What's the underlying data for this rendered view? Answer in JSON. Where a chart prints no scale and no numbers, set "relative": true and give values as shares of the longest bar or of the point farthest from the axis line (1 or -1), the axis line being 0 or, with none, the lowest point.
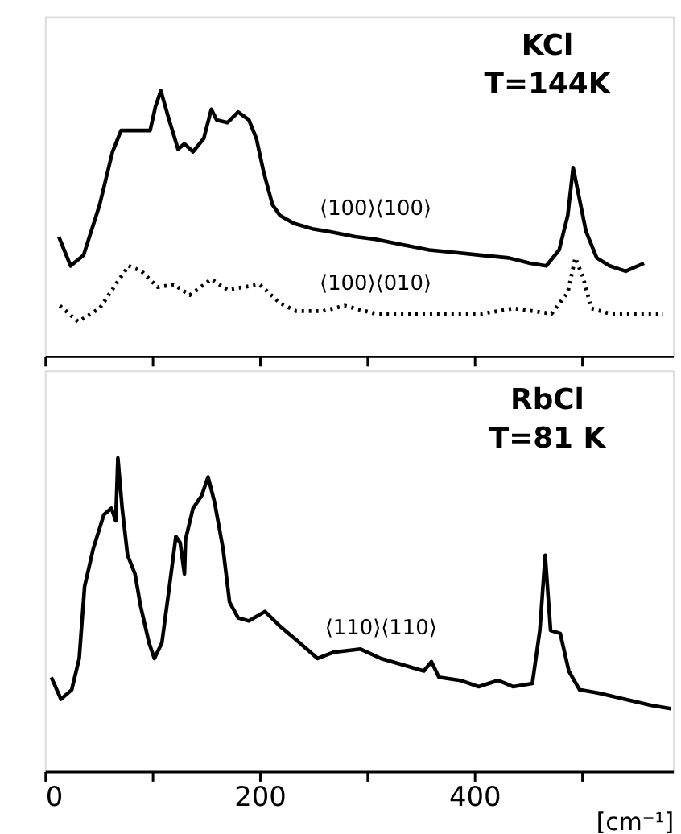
{
  "chart_data": [
    {
      "type": "line",
      "relative": true,
      "annotations": [
        "KCl",
        "T=144K"
      ],
      "xlim": [
        0,
        585
      ],
      "xticks": [
        0,
        100,
        200,
        300,
        400,
        500
      ],
      "tick_labels": false,
      "marker": "none",
      "series": [
        {
          "name": "⟨100⟩⟨100⟩",
          "color": "#000000",
          "line_style": "solid",
          "x": [
            13,
            24,
            36,
            51,
            63,
            71,
            86,
            98,
            103,
            108,
            115,
            124,
            130,
            138,
            148,
            155,
            160,
            170,
            180,
            190,
            197,
            204,
            212,
            219,
            232,
            249,
            264,
            289,
            308,
            333,
            358,
            383,
            407,
            432,
            452,
            467,
            479,
            487,
            492,
            497,
            504,
            514,
            526,
            541,
            558
          ],
          "values": [
            0.45,
            0.34,
            0.38,
            0.57,
            0.77,
            0.85,
            0.85,
            0.85,
            0.94,
            1.0,
            0.9,
            0.78,
            0.8,
            0.77,
            0.82,
            0.93,
            0.89,
            0.88,
            0.92,
            0.89,
            0.82,
            0.69,
            0.57,
            0.53,
            0.5,
            0.48,
            0.47,
            0.45,
            0.44,
            0.42,
            0.4,
            0.39,
            0.38,
            0.37,
            0.35,
            0.34,
            0.4,
            0.53,
            0.71,
            0.61,
            0.47,
            0.37,
            0.34,
            0.32,
            0.35
          ]
        },
        {
          "name": "⟨100⟩⟨010⟩",
          "color": "#000000",
          "line_style": "dotted",
          "x": [
            14,
            31,
            51,
            66,
            78,
            90,
            105,
            120,
            135,
            155,
            170,
            185,
            200,
            219,
            234,
            259,
            279,
            308,
            358,
            407,
            437,
            472,
            487,
            494,
            501,
            509,
            526,
            576
          ],
          "values": [
            0.19,
            0.13,
            0.18,
            0.27,
            0.34,
            0.32,
            0.26,
            0.27,
            0.23,
            0.29,
            0.25,
            0.26,
            0.27,
            0.2,
            0.17,
            0.17,
            0.19,
            0.16,
            0.16,
            0.16,
            0.18,
            0.16,
            0.24,
            0.37,
            0.3,
            0.18,
            0.16,
            0.16
          ]
        }
      ]
    },
    {
      "type": "line",
      "relative": true,
      "annotations": [
        "RbCl",
        "T=81 K"
      ],
      "xlabel": "[cm⁻¹]",
      "xlim": [
        0,
        585
      ],
      "xticks": [
        0,
        {
          "value": 100,
          "label": null
        },
        200,
        {
          "value": 300,
          "label": null
        },
        400,
        {
          "value": 500,
          "label": null
        }
      ],
      "tick_labels": "x",
      "marker": "none",
      "series": [
        {
          "name": "⟨110⟩⟨110⟩",
          "color": "#000000",
          "line_style": "solid",
          "x": [
            6,
            15,
            25,
            32,
            37,
            45,
            55,
            62,
            66,
            68,
            72,
            77,
            84,
            89,
            97,
            102,
            109,
            116,
            122,
            126,
            130,
            131,
            138,
            146,
            152,
            158,
            166,
            172,
            180,
            190,
            205,
            220,
            234,
            254,
            269,
            294,
            313,
            333,
            353,
            360,
            367,
            387,
            404,
            422,
            436,
            454,
            461,
            466,
            471,
            480,
            488,
            498,
            515,
            540,
            565,
            583
          ],
          "values": [
            0.3,
            0.23,
            0.26,
            0.36,
            0.59,
            0.71,
            0.82,
            0.84,
            0.8,
            1.0,
            0.84,
            0.69,
            0.63,
            0.53,
            0.41,
            0.36,
            0.41,
            0.59,
            0.75,
            0.73,
            0.63,
            0.74,
            0.84,
            0.88,
            0.94,
            0.86,
            0.71,
            0.54,
            0.49,
            0.48,
            0.51,
            0.46,
            0.42,
            0.36,
            0.38,
            0.39,
            0.36,
            0.34,
            0.32,
            0.35,
            0.3,
            0.29,
            0.27,
            0.29,
            0.27,
            0.28,
            0.45,
            0.69,
            0.45,
            0.44,
            0.32,
            0.26,
            0.25,
            0.23,
            0.21,
            0.2
          ]
        }
      ]
    }
  ]
}
